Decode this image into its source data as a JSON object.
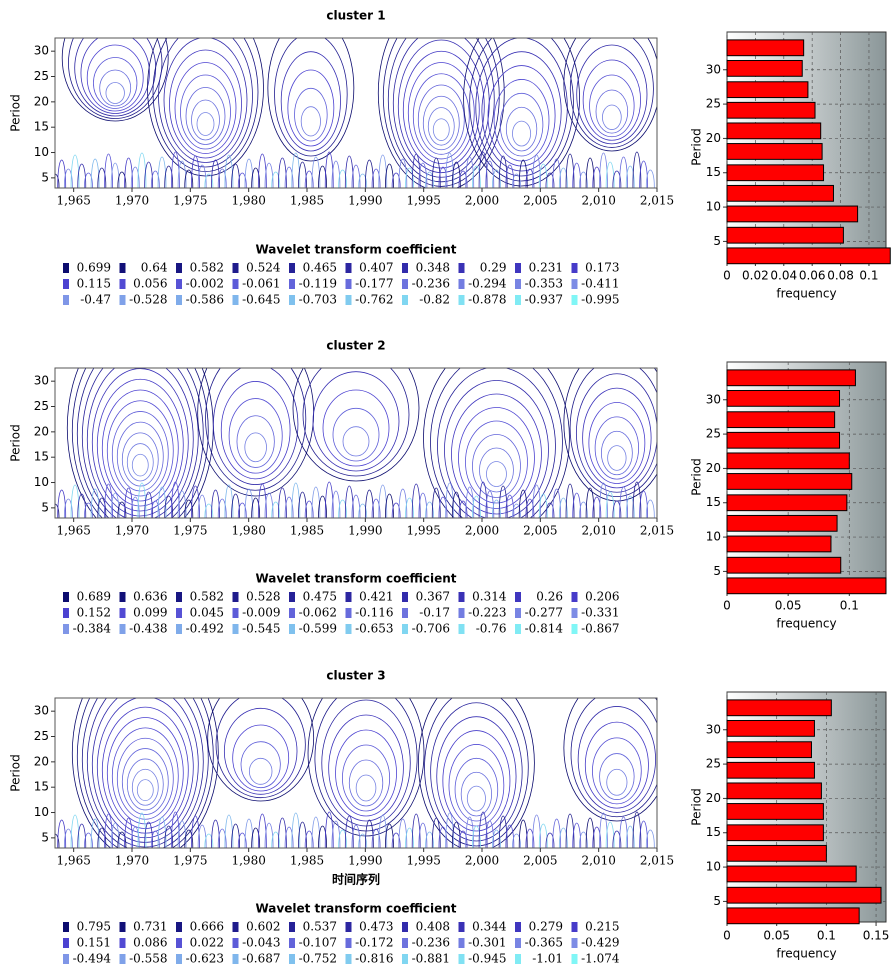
{
  "chart_data": [
    {
      "type": "contour",
      "title": "cluster 1",
      "ylabel": "Period",
      "xlim": [
        1963.4,
        2015
      ],
      "ylim": [
        3,
        32.6
      ],
      "xticks": [
        {
          "value": 1965,
          "label": "1,965"
        },
        {
          "value": 1970,
          "label": "1,970"
        },
        {
          "value": 1975,
          "label": "1,975"
        },
        {
          "value": 1980,
          "label": "1,980"
        },
        {
          "value": 1985,
          "label": "1,985"
        },
        {
          "value": 1990,
          "label": "1,990"
        },
        {
          "value": 1995,
          "label": "1,995"
        },
        {
          "value": 2000,
          "label": "2,000"
        },
        {
          "value": 2005,
          "label": "2,005"
        },
        {
          "value": 2010,
          "label": "2,010"
        },
        {
          "value": 2015,
          "label": "2,015"
        }
      ],
      "yticks": [
        5,
        10,
        15,
        20,
        25,
        30
      ],
      "legend_title": "Wavelet transform coefficient",
      "legend_levels": [
        0.699,
        0.64,
        0.582,
        0.524,
        0.465,
        0.407,
        0.348,
        0.29,
        0.231,
        0.173,
        0.115,
        0.056,
        -0.002,
        -0.061,
        -0.119,
        -0.177,
        -0.236,
        -0.294,
        -0.353,
        -0.411,
        -0.47,
        -0.528,
        -0.586,
        -0.645,
        -0.703,
        -0.762,
        -0.82,
        -0.878,
        -0.937,
        -0.995
      ],
      "colormap": [
        "#0b0b6e",
        "#4a3fd0",
        "#7f8fe6",
        "#80f6f6"
      ]
    },
    {
      "type": "barh",
      "ylabel": "Period",
      "xlabel": "frequency",
      "color": "#ff0000",
      "grid": true,
      "xlim": [
        0,
        0.112
      ],
      "ylim": [
        2,
        35.5
      ],
      "xticks": [
        0,
        0.02,
        0.04,
        0.06,
        0.08,
        0.1
      ],
      "yticks": [
        5,
        10,
        15,
        20,
        25,
        30
      ],
      "y": [
        2.9,
        5.9,
        9,
        12,
        15,
        18.1,
        21.1,
        24.1,
        27.1,
        30.2,
        33.2
      ],
      "values": [
        0.115,
        0.082,
        0.092,
        0.075,
        0.068,
        0.067,
        0.066,
        0.062,
        0.057,
        0.053,
        0.054
      ]
    },
    {
      "type": "contour",
      "title": "cluster 2",
      "ylabel": "Period",
      "xlim": [
        1963.4,
        2015
      ],
      "ylim": [
        3,
        32.6
      ],
      "xticks": [
        {
          "value": 1965,
          "label": "1,965"
        },
        {
          "value": 1970,
          "label": "1,970"
        },
        {
          "value": 1975,
          "label": "1,975"
        },
        {
          "value": 1980,
          "label": "1,980"
        },
        {
          "value": 1985,
          "label": "1,985"
        },
        {
          "value": 1990,
          "label": "1,990"
        },
        {
          "value": 1995,
          "label": "1,995"
        },
        {
          "value": 2000,
          "label": "2,000"
        },
        {
          "value": 2005,
          "label": "2,005"
        },
        {
          "value": 2010,
          "label": "2,010"
        },
        {
          "value": 2015,
          "label": "2,015"
        }
      ],
      "yticks": [
        5,
        10,
        15,
        20,
        25,
        30
      ],
      "legend_title": "Wavelet transform coefficient",
      "legend_levels": [
        0.689,
        0.636,
        0.582,
        0.528,
        0.475,
        0.421,
        0.367,
        0.314,
        0.26,
        0.206,
        0.152,
        0.099,
        0.045,
        -0.009,
        -0.062,
        -0.116,
        -0.17,
        -0.223,
        -0.277,
        -0.331,
        -0.384,
        -0.438,
        -0.492,
        -0.545,
        -0.599,
        -0.653,
        -0.706,
        -0.76,
        -0.814,
        -0.867
      ],
      "colormap": [
        "#0b0b6e",
        "#4a3fd0",
        "#7f8fe6",
        "#80f6f6"
      ]
    },
    {
      "type": "barh",
      "ylabel": "Period",
      "xlabel": "frequency",
      "color": "#ff0000",
      "grid": true,
      "xlim": [
        0,
        0.13
      ],
      "ylim": [
        2,
        35.5
      ],
      "xticks": [
        0,
        0.05,
        0.1
      ],
      "yticks": [
        5,
        10,
        15,
        20,
        25,
        30
      ],
      "y": [
        2.9,
        5.9,
        9,
        12,
        15,
        18.1,
        21.1,
        24.1,
        27.1,
        30.2,
        33.2
      ],
      "values": [
        0.13,
        0.093,
        0.085,
        0.09,
        0.098,
        0.102,
        0.1,
        0.092,
        0.088,
        0.092,
        0.105
      ]
    },
    {
      "type": "contour",
      "title": "cluster 3",
      "ylabel": "Period",
      "xlabel": "时间序列",
      "xlim": [
        1963.4,
        2015
      ],
      "ylim": [
        3,
        32.6
      ],
      "xticks": [
        {
          "value": 1965,
          "label": "1,965"
        },
        {
          "value": 1970,
          "label": "1,970"
        },
        {
          "value": 1975,
          "label": "1,975"
        },
        {
          "value": 1980,
          "label": "1,980"
        },
        {
          "value": 1985,
          "label": "1,985"
        },
        {
          "value": 1990,
          "label": "1,990"
        },
        {
          "value": 1995,
          "label": "1,995"
        },
        {
          "value": 2000,
          "label": "2,000"
        },
        {
          "value": 2005,
          "label": "2,005"
        },
        {
          "value": 2010,
          "label": "2,010"
        },
        {
          "value": 2015,
          "label": "2,015"
        }
      ],
      "yticks": [
        5,
        10,
        15,
        20,
        25,
        30
      ],
      "legend_title": "Wavelet transform coefficient",
      "legend_levels": [
        0.795,
        0.731,
        0.666,
        0.602,
        0.537,
        0.473,
        0.408,
        0.344,
        0.279,
        0.215,
        0.151,
        0.086,
        0.022,
        -0.043,
        -0.107,
        -0.172,
        -0.236,
        -0.301,
        -0.365,
        -0.429,
        -0.494,
        -0.558,
        -0.623,
        -0.687,
        -0.752,
        -0.816,
        -0.881,
        -0.945,
        -1.01,
        -1.074
      ],
      "colormap": [
        "#0b0b6e",
        "#4a3fd0",
        "#7f8fe6",
        "#80f6f6"
      ]
    },
    {
      "type": "barh",
      "ylabel": "Period",
      "xlabel": "frequency",
      "color": "#ff0000",
      "grid": true,
      "xlim": [
        0,
        0.16
      ],
      "ylim": [
        2,
        35.5
      ],
      "xticks": [
        0,
        0.05,
        0.1,
        0.15
      ],
      "yticks": [
        5,
        10,
        15,
        20,
        25,
        30
      ],
      "y": [
        2.9,
        5.9,
        9,
        12,
        15,
        18.1,
        21.1,
        24.1,
        27.1,
        30.2,
        33.2
      ],
      "values": [
        0.133,
        0.155,
        0.13,
        0.1,
        0.097,
        0.097,
        0.095,
        0.088,
        0.085,
        0.088,
        0.105
      ]
    }
  ]
}
